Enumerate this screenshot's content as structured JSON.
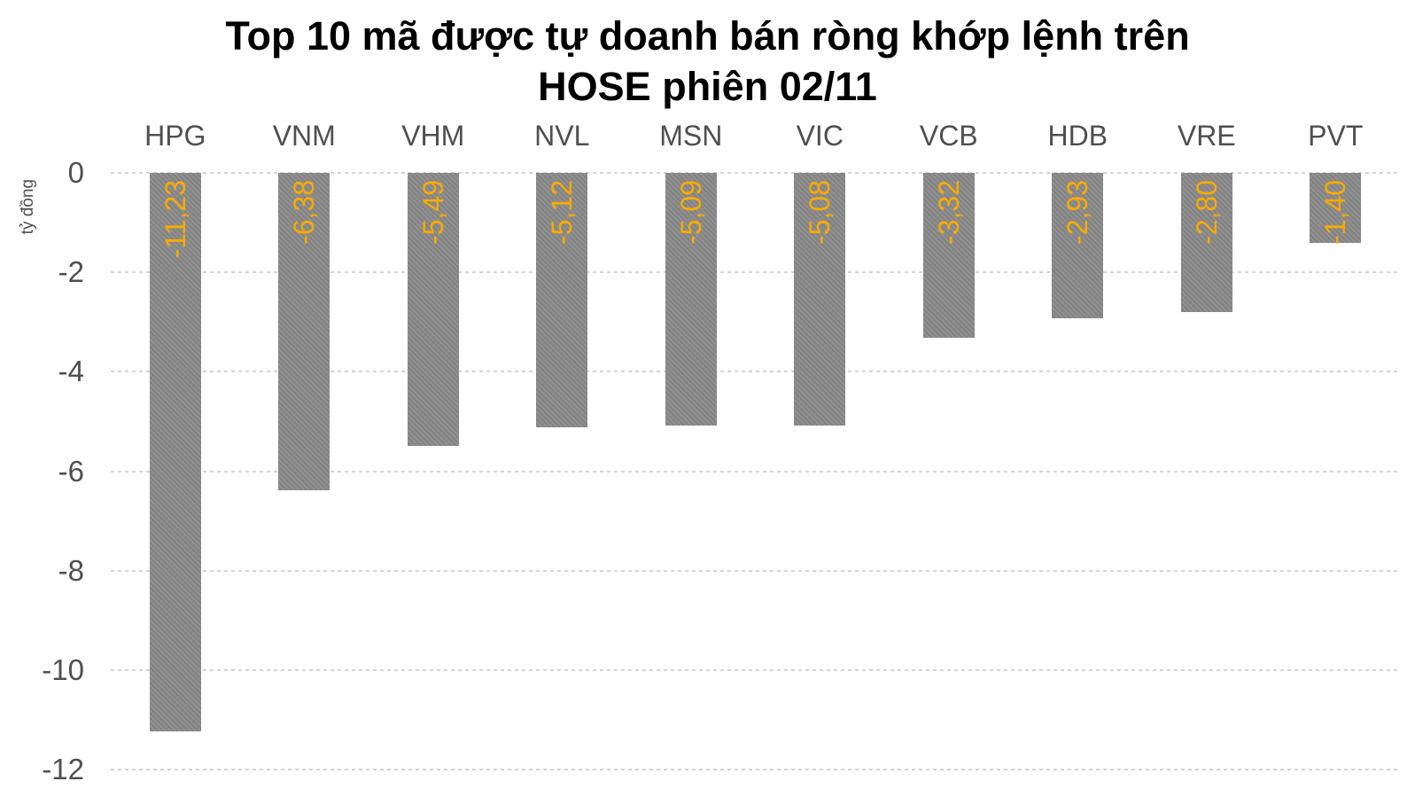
{
  "title": "Top 10 mã được tự doanh bán ròng khớp lệnh trên HOSE phiên 02/11",
  "title_lines": [
    "Top 10 mã được tự doanh bán ròng khớp lệnh trên",
    "HOSE phiên 02/11"
  ],
  "y_axis": {
    "label": "tỷ đồng",
    "tick_labels": [
      "0",
      "-2",
      "-4",
      "-6",
      "-8",
      "-10",
      "-12"
    ]
  },
  "chart_data": {
    "type": "bar",
    "orientation": "vertical-negative",
    "title": "Top 10 mã được tự doanh bán ròng khớp lệnh trên HOSE phiên 02/11",
    "xlabel": "",
    "ylabel": "tỷ đồng",
    "categories": [
      "HPG",
      "VNM",
      "VHM",
      "NVL",
      "MSN",
      "VIC",
      "VCB",
      "HDB",
      "VRE",
      "PVT"
    ],
    "values": [
      -11.23,
      -6.38,
      -5.49,
      -5.12,
      -5.09,
      -5.08,
      -3.32,
      -2.93,
      -2.8,
      -1.4
    ],
    "value_labels": [
      "-11,23",
      "-6,38",
      "-5,49",
      "-5,12",
      "-5,09",
      "-5,08",
      "-3,32",
      "-2,93",
      "-2,80",
      "-1,40"
    ],
    "ylim": [
      -12,
      0
    ],
    "yticks": [
      0,
      -2,
      -4,
      -6,
      -8,
      -10,
      -12
    ],
    "grid": "horizontal-dashed",
    "legend": "none",
    "category_label_position": "top",
    "value_label_position": "inside-top-rotated-90ccw",
    "colors": {
      "bar": "#8a8a8a",
      "value_label": "#f9ab00",
      "axis_text": "#4f4f4f",
      "title_text": "#000000",
      "gridline": "#d4d4d4",
      "background": "#ffffff"
    }
  }
}
